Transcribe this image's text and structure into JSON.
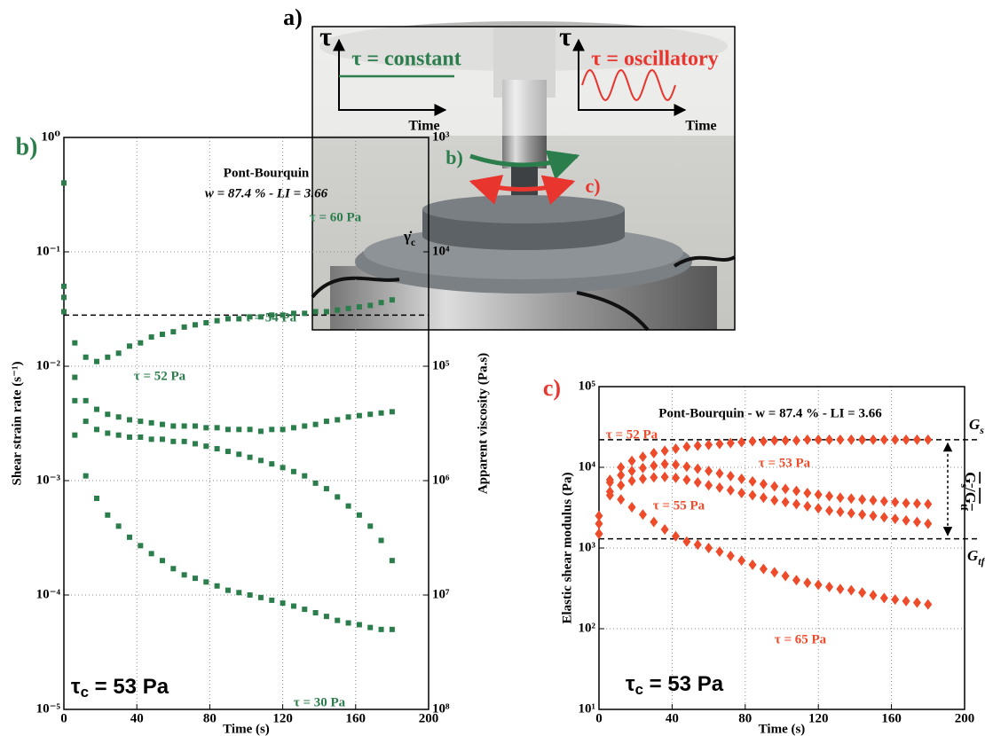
{
  "photo": {
    "panel_label": "a)",
    "left_axis": "τ",
    "left_label": "τ = constant",
    "left_time": "Time",
    "right_axis": "τ",
    "right_label": "τ = oscillatory",
    "right_time": "Time",
    "arrow_b": "b)",
    "arrow_c": "c)"
  },
  "chart_data": [
    {
      "type": "scatter",
      "panel_label": "b)",
      "title": "Pont-Bourquin",
      "subtitle": "w = 87.4 % - LI = 3.66",
      "annotation": "τc = 53 Pa",
      "x_label": "Time (s)",
      "y_label": "Shear strain rate (s⁻¹)",
      "y2_label": "Apparent viscosity (Pa.s)",
      "x": [
        0,
        6,
        12,
        18,
        24,
        30,
        36,
        42,
        48,
        54,
        60,
        66,
        72,
        78,
        84,
        90,
        96,
        102,
        108,
        114,
        120,
        126,
        132,
        138,
        144,
        150,
        156,
        162,
        168,
        174,
        180
      ],
      "series": [
        {
          "name": "τ = 60 Pa",
          "color": "#2b7d4b",
          "values": [
            0.4,
            0.016,
            0.012,
            0.011,
            0.012,
            0.013,
            0.015,
            0.016,
            0.018,
            0.019,
            0.02,
            0.022,
            0.023,
            0.024,
            0.025,
            0.026,
            0.026,
            0.027,
            0.027,
            0.028,
            0.028,
            0.029,
            0.029,
            0.03,
            0.03,
            0.031,
            0.032,
            0.033,
            0.034,
            0.036,
            0.038
          ]
        },
        {
          "name": "τ = 54 Pa",
          "color": "#2b7d4b",
          "values": [
            0.05,
            0.008,
            0.005,
            0.0042,
            0.0038,
            0.0036,
            0.0034,
            0.0033,
            0.0032,
            0.0031,
            0.003,
            0.003,
            0.003,
            0.0029,
            0.0029,
            0.0028,
            0.0028,
            0.0028,
            0.0027,
            0.0028,
            0.0028,
            0.0029,
            0.003,
            0.0031,
            0.0033,
            0.0034,
            0.0036,
            0.0037,
            0.0038,
            0.0039,
            0.004
          ]
        },
        {
          "name": "τ = 52 Pa",
          "color": "#2b7d4b",
          "values": [
            0.04,
            0.005,
            0.0033,
            0.0028,
            0.0026,
            0.0025,
            0.0024,
            0.0024,
            0.0023,
            0.0023,
            0.0022,
            0.0022,
            0.0021,
            0.002,
            0.0019,
            0.0018,
            0.0017,
            0.0016,
            0.0015,
            0.0014,
            0.0013,
            0.0012,
            0.0011,
            0.00095,
            0.00085,
            0.00072,
            0.0006,
            0.0005,
            0.0004,
            0.0003,
            0.0002
          ]
        },
        {
          "name": "τ = 30 Pa",
          "color": "#2b7d4b",
          "values": [
            0.03,
            0.0025,
            0.0011,
            0.0007,
            0.0005,
            0.0004,
            0.00032,
            0.00027,
            0.00023,
            0.0002,
            0.00017,
            0.00015,
            0.00014,
            0.00013,
            0.00012,
            0.00011,
            0.000105,
            0.0001,
            9.5e-05,
            9e-05,
            8.5e-05,
            8e-05,
            7.5e-05,
            7e-05,
            6.5e-05,
            6e-05,
            5.7e-05,
            5.5e-05,
            5.2e-05,
            5e-05,
            5e-05
          ]
        }
      ],
      "xlim": [
        0,
        200
      ],
      "xticks": [
        0,
        40,
        80,
        120,
        160,
        200
      ],
      "ylim": [
        1e-05,
        1
      ],
      "yticks": [
        {
          "value": 1e-05,
          "label": "10⁻⁵"
        },
        {
          "value": 0.0001,
          "label": "10⁻⁴"
        },
        {
          "value": 0.001,
          "label": "10⁻³"
        },
        {
          "value": 0.01,
          "label": "10⁻²"
        },
        {
          "value": 0.1,
          "label": "10⁻¹"
        },
        {
          "value": 1,
          "label": "10⁰"
        }
      ],
      "y2lim": [
        100000000,
        1000
      ],
      "y2ticks": [
        {
          "value": 100000000,
          "label": "10⁸"
        },
        {
          "value": 10000000,
          "label": "10⁷"
        },
        {
          "value": 1000000,
          "label": "10⁶"
        },
        {
          "value": 100000,
          "label": "10⁵"
        },
        {
          "value": 10000,
          "label": "10⁴"
        },
        {
          "value": 1000,
          "label": "10³"
        }
      ],
      "log_y": true,
      "log_y2": true,
      "grid": true,
      "marker": "square",
      "reference_lines": [
        {
          "value": 0.028,
          "label": "γ̇c"
        }
      ]
    },
    {
      "type": "scatter",
      "panel_label": "c)",
      "title": "Pont-Bourquin - w = 87.4 % - LI = 3.66",
      "annotation": "τc = 53 Pa",
      "x_label": "Time (s)",
      "y_label": "Elastic shear modulus (Pa)",
      "ratio_label": "Gs/Gtf",
      "x": [
        0,
        6,
        12,
        18,
        24,
        30,
        36,
        42,
        48,
        54,
        60,
        66,
        72,
        78,
        84,
        90,
        96,
        102,
        108,
        114,
        120,
        126,
        132,
        138,
        144,
        150,
        156,
        162,
        168,
        174,
        180
      ],
      "series": [
        {
          "name": "τ = 52 Pa",
          "color": "#ee4b2b",
          "values": [
            1500,
            7000,
            10000,
            12000,
            13500,
            15000,
            16000,
            17000,
            18000,
            18500,
            19000,
            19500,
            20000,
            20500,
            21000,
            21000,
            21500,
            21500,
            21500,
            22000,
            22000,
            22000,
            22000,
            22000,
            22000,
            22000,
            22000,
            22000,
            22000,
            22000,
            22000
          ]
        },
        {
          "name": "τ = 53 Pa",
          "color": "#ee4b2b",
          "values": [
            2500,
            6500,
            8000,
            9000,
            9800,
            10500,
            11000,
            10800,
            10200,
            9600,
            9000,
            8400,
            7800,
            7200,
            6700,
            6200,
            5800,
            5400,
            5100,
            4800,
            4600,
            4400,
            4200,
            4100,
            4000,
            3900,
            3800,
            3700,
            3600,
            3550,
            3500
          ]
        },
        {
          "name": "τ = 55 Pa",
          "color": "#ee4b2b",
          "values": [
            2000,
            5000,
            6000,
            6800,
            7200,
            7500,
            7600,
            7400,
            7000,
            6500,
            6000,
            5600,
            5200,
            4800,
            4500,
            4200,
            3900,
            3700,
            3500,
            3300,
            3100,
            2900,
            2800,
            2700,
            2600,
            2500,
            2400,
            2300,
            2200,
            2100,
            2000
          ]
        },
        {
          "name": "τ = 65 Pa",
          "color": "#ee4b2b",
          "values": [
            1500,
            4500,
            4000,
            3200,
            2600,
            2100,
            1700,
            1400,
            1200,
            1100,
            1000,
            900,
            800,
            700,
            620,
            550,
            500,
            450,
            400,
            370,
            350,
            330,
            310,
            300,
            280,
            260,
            240,
            230,
            220,
            210,
            200
          ]
        }
      ],
      "xlim": [
        0,
        200
      ],
      "xticks": [
        0,
        40,
        80,
        120,
        160,
        200
      ],
      "ylim": [
        10,
        100000
      ],
      "yticks": [
        {
          "value": 10,
          "label": "10¹"
        },
        {
          "value": 100,
          "label": "10²"
        },
        {
          "value": 1000,
          "label": "10³"
        },
        {
          "value": 10000,
          "label": "10⁴"
        },
        {
          "value": 100000,
          "label": "10⁵"
        }
      ],
      "log_y": true,
      "grid": true,
      "marker": "diamond",
      "reference_lines": [
        {
          "value": 22000,
          "label": "Gs"
        },
        {
          "value": 1300,
          "label": "Gtf"
        }
      ]
    }
  ]
}
